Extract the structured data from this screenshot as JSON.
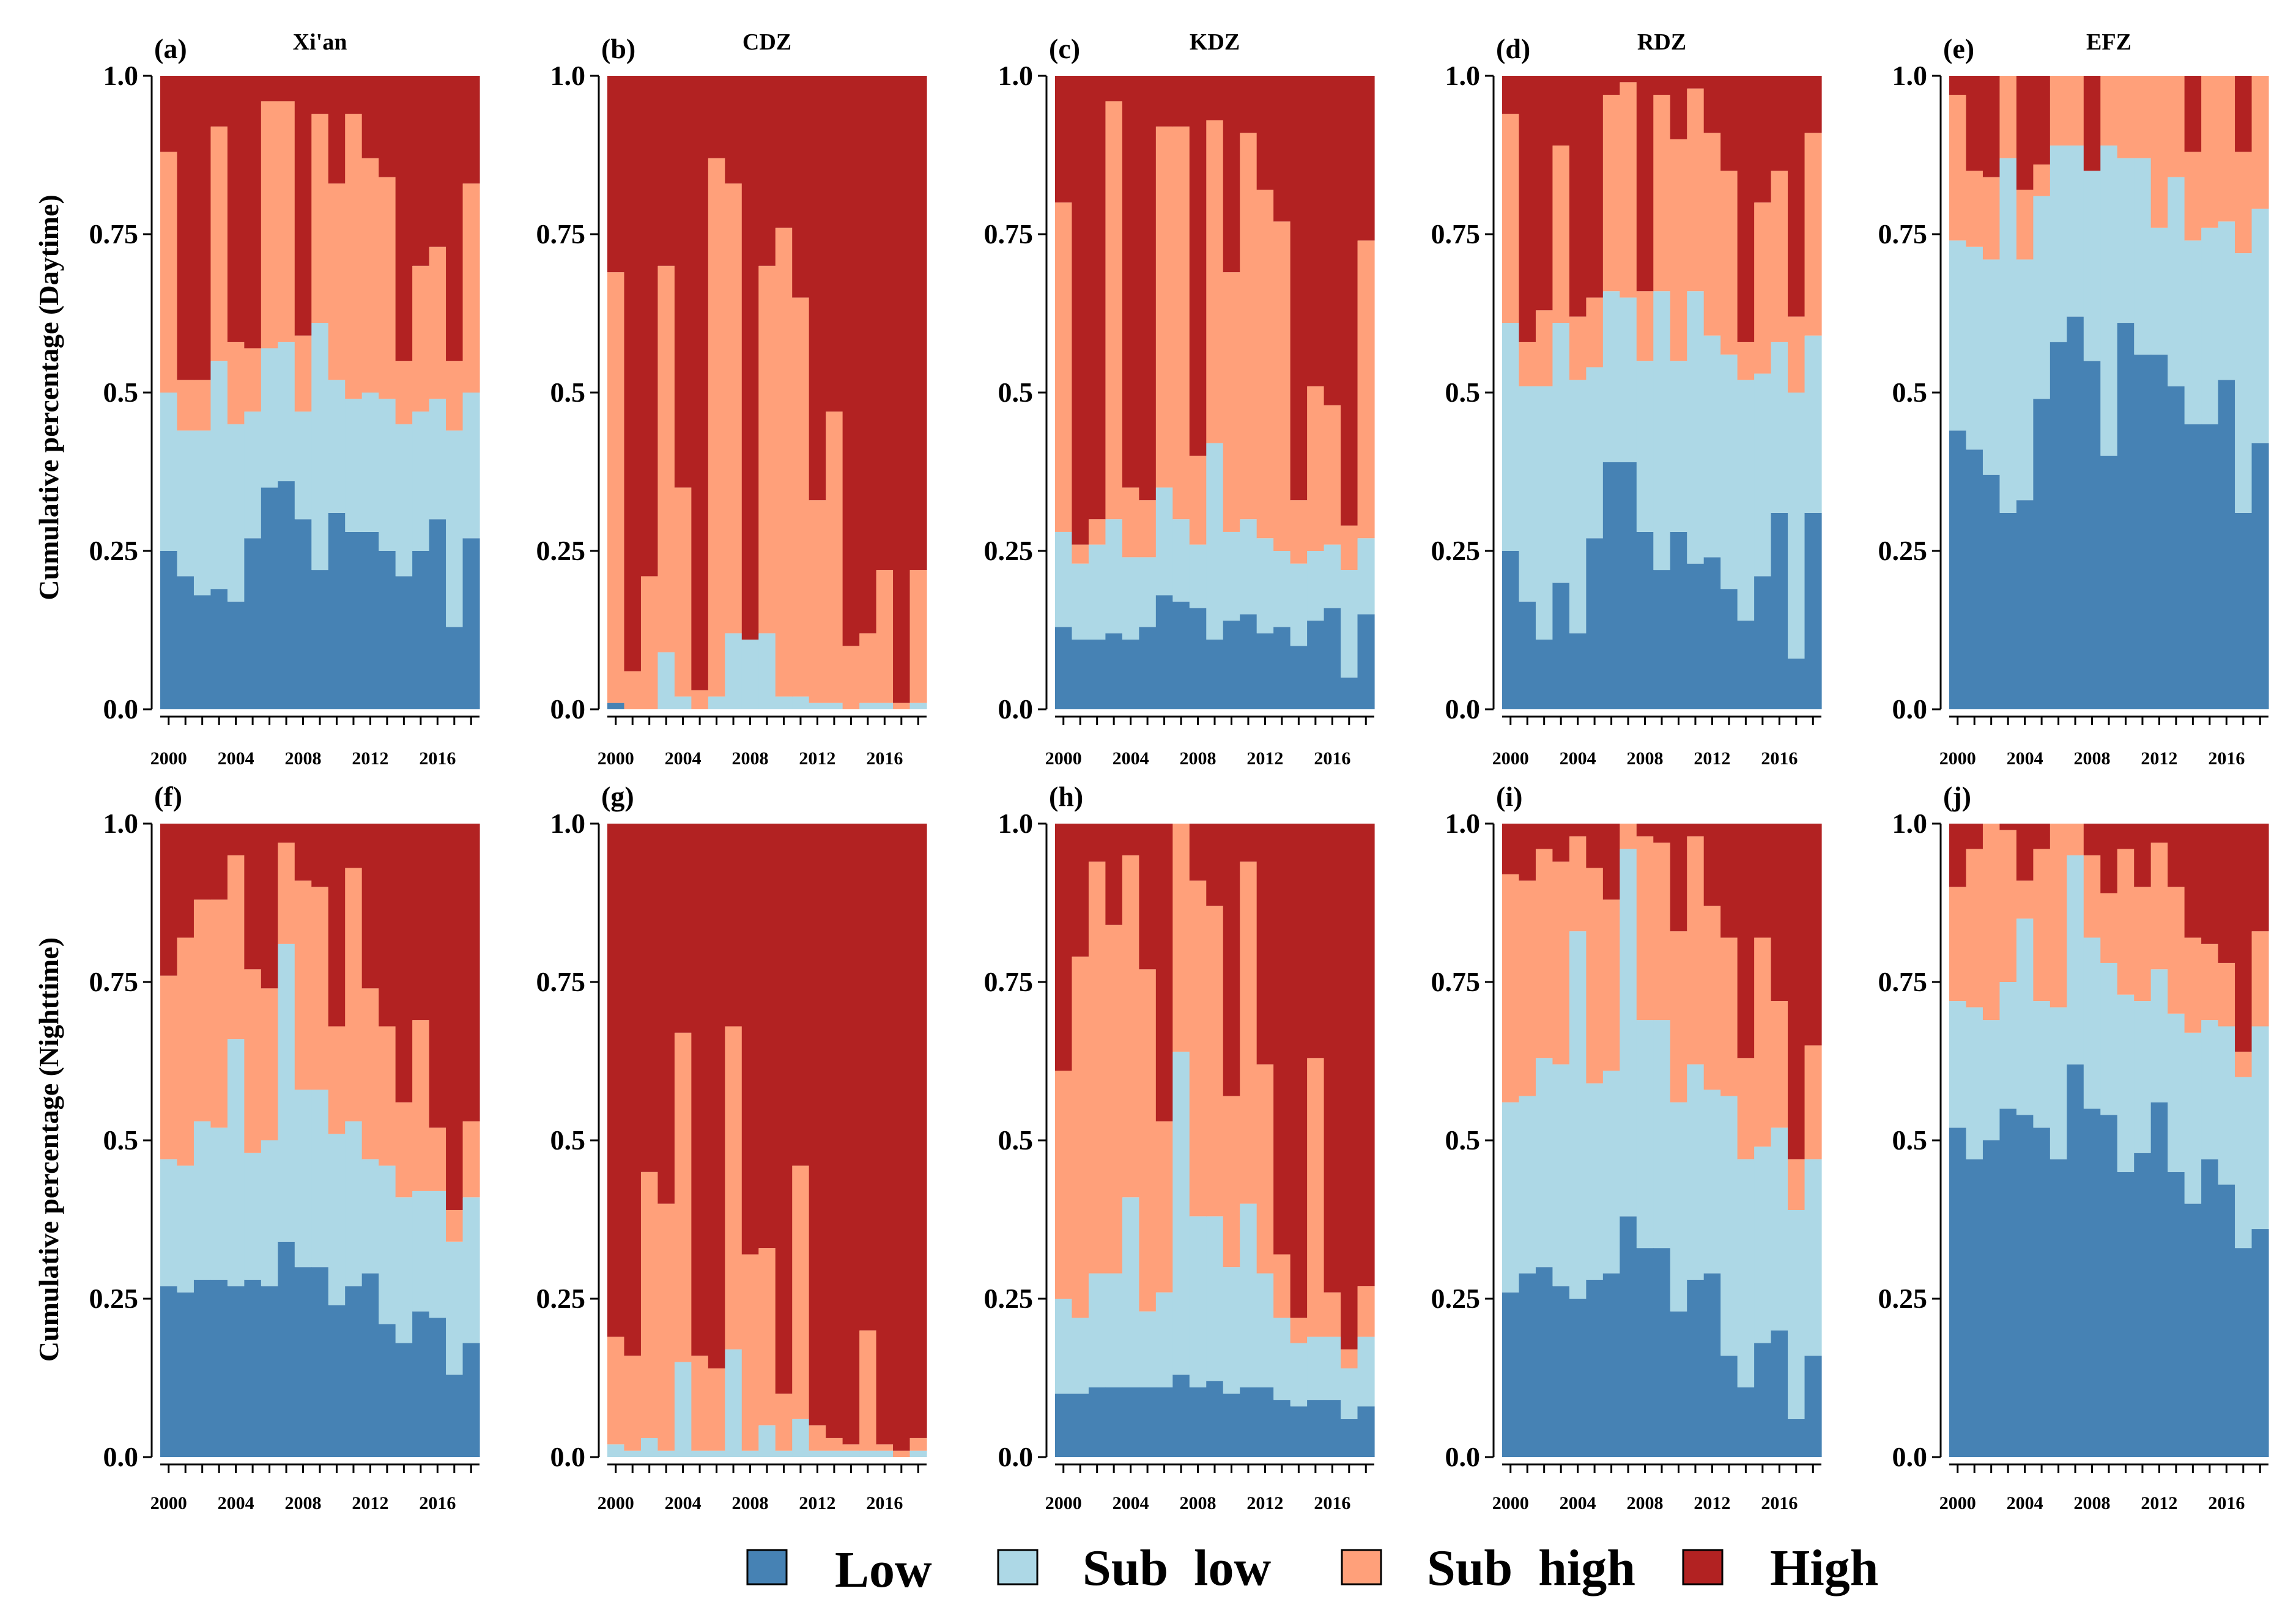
{
  "chart_data": {
    "type": "stacked-bar",
    "x": [
      2000,
      2001,
      2002,
      2003,
      2004,
      2005,
      2006,
      2007,
      2008,
      2009,
      2010,
      2011,
      2012,
      2013,
      2014,
      2015,
      2016,
      2017,
      2018
    ],
    "x_tick_labels": [
      "2000",
      "2004",
      "2008",
      "2012",
      "2016"
    ],
    "y_ticks": [
      "0.0",
      "0.25",
      "0.5",
      "0.75",
      "1.0"
    ],
    "ylim": [
      0,
      1
    ],
    "row_labels": [
      "Cumulative percentage   (Daytime)",
      "Cumulative percentage (Nighttime)"
    ],
    "categories": [
      "Low",
      "Sub  low",
      "Sub  high",
      "High"
    ],
    "legend": {
      "labels": [
        "Low",
        "Sub  low",
        "Sub  high",
        "High"
      ],
      "colors": [
        "#4682b4",
        "#add8e6",
        "#ffa07a",
        "#b22222"
      ],
      "position": "bottom-center"
    },
    "panels": [
      {
        "label": "(a)",
        "title": "Xi'an",
        "period": "Daytime",
        "low": [
          0.25,
          0.21,
          0.18,
          0.19,
          0.17,
          0.27,
          0.35,
          0.36,
          0.3,
          0.22,
          0.31,
          0.28,
          0.28,
          0.25,
          0.21,
          0.25,
          0.3,
          0.13,
          0.27
        ],
        "sublow": [
          0.5,
          0.44,
          0.44,
          0.55,
          0.45,
          0.47,
          0.57,
          0.58,
          0.47,
          0.61,
          0.52,
          0.49,
          0.5,
          0.49,
          0.45,
          0.47,
          0.49,
          0.44,
          0.5
        ],
        "subhigh": [
          0.88,
          0.52,
          0.52,
          0.92,
          0.58,
          0.57,
          0.96,
          0.96,
          0.59,
          0.94,
          0.83,
          0.94,
          0.87,
          0.84,
          0.55,
          0.7,
          0.73,
          0.55,
          0.83
        ]
      },
      {
        "label": "(b)",
        "title": "CDZ",
        "period": "Daytime",
        "low": [
          0.01,
          0.0,
          0.0,
          0.0,
          0.0,
          0.0,
          0.0,
          0.0,
          0.0,
          0.0,
          0.0,
          0.0,
          0.0,
          0.0,
          0.0,
          0.0,
          0.0,
          0.0,
          0.0
        ],
        "sublow": [
          0.01,
          0.0,
          0.0,
          0.09,
          0.02,
          0.0,
          0.02,
          0.12,
          0.11,
          0.12,
          0.02,
          0.02,
          0.01,
          0.01,
          0.0,
          0.01,
          0.01,
          0.0,
          0.01
        ],
        "subhigh": [
          0.69,
          0.06,
          0.21,
          0.7,
          0.35,
          0.03,
          0.87,
          0.83,
          0.11,
          0.7,
          0.76,
          0.65,
          0.33,
          0.47,
          0.1,
          0.12,
          0.22,
          0.01,
          0.22
        ]
      },
      {
        "label": "(c)",
        "title": "KDZ",
        "period": "Daytime",
        "low": [
          0.13,
          0.11,
          0.11,
          0.12,
          0.11,
          0.13,
          0.18,
          0.17,
          0.16,
          0.11,
          0.14,
          0.15,
          0.12,
          0.13,
          0.1,
          0.14,
          0.16,
          0.05,
          0.15
        ],
        "sublow": [
          0.28,
          0.23,
          0.26,
          0.3,
          0.24,
          0.24,
          0.35,
          0.3,
          0.26,
          0.42,
          0.28,
          0.3,
          0.27,
          0.25,
          0.23,
          0.25,
          0.26,
          0.22,
          0.27
        ],
        "subhigh": [
          0.8,
          0.26,
          0.3,
          0.96,
          0.35,
          0.33,
          0.92,
          0.92,
          0.4,
          0.93,
          0.69,
          0.91,
          0.82,
          0.77,
          0.33,
          0.51,
          0.48,
          0.29,
          0.74
        ]
      },
      {
        "label": "(d)",
        "title": "RDZ",
        "period": "Daytime",
        "low": [
          0.25,
          0.17,
          0.11,
          0.2,
          0.12,
          0.27,
          0.39,
          0.39,
          0.28,
          0.22,
          0.28,
          0.23,
          0.24,
          0.19,
          0.14,
          0.21,
          0.31,
          0.08,
          0.31
        ],
        "sublow": [
          0.61,
          0.51,
          0.51,
          0.61,
          0.52,
          0.54,
          0.66,
          0.65,
          0.55,
          0.66,
          0.55,
          0.66,
          0.59,
          0.56,
          0.52,
          0.53,
          0.58,
          0.5,
          0.59
        ],
        "subhigh": [
          0.94,
          0.58,
          0.63,
          0.89,
          0.62,
          0.65,
          0.97,
          0.99,
          0.66,
          0.97,
          0.9,
          0.98,
          0.91,
          0.85,
          0.58,
          0.8,
          0.85,
          0.62,
          0.91
        ]
      },
      {
        "label": "(e)",
        "title": "EFZ",
        "period": "Daytime",
        "low": [
          0.44,
          0.41,
          0.37,
          0.31,
          0.33,
          0.49,
          0.58,
          0.62,
          0.55,
          0.4,
          0.61,
          0.56,
          0.56,
          0.51,
          0.45,
          0.45,
          0.52,
          0.31,
          0.42
        ],
        "sublow": [
          0.74,
          0.73,
          0.71,
          0.87,
          0.71,
          0.81,
          0.89,
          0.89,
          0.85,
          0.89,
          0.87,
          0.87,
          0.76,
          0.84,
          0.74,
          0.76,
          0.77,
          0.72,
          0.79
        ],
        "subhigh": [
          0.97,
          0.85,
          0.84,
          1.0,
          0.82,
          0.86,
          1.0,
          1.0,
          0.85,
          1.0,
          1.0,
          1.0,
          1.0,
          1.0,
          0.88,
          1.0,
          1.0,
          0.88,
          1.0
        ]
      },
      {
        "label": "(f)",
        "title": "",
        "period": "Nighttime",
        "low": [
          0.27,
          0.26,
          0.28,
          0.28,
          0.27,
          0.28,
          0.27,
          0.34,
          0.3,
          0.3,
          0.24,
          0.27,
          0.29,
          0.21,
          0.18,
          0.23,
          0.22,
          0.13,
          0.18
        ],
        "sublow": [
          0.47,
          0.46,
          0.53,
          0.52,
          0.66,
          0.48,
          0.5,
          0.81,
          0.58,
          0.58,
          0.51,
          0.53,
          0.47,
          0.46,
          0.41,
          0.42,
          0.42,
          0.34,
          0.41
        ],
        "subhigh": [
          0.76,
          0.82,
          0.88,
          0.88,
          0.95,
          0.77,
          0.74,
          0.97,
          0.91,
          0.9,
          0.68,
          0.93,
          0.74,
          0.68,
          0.56,
          0.69,
          0.52,
          0.39,
          0.53
        ]
      },
      {
        "label": "(g)",
        "title": "",
        "period": "Nighttime",
        "low": [
          0.0,
          0.0,
          0.0,
          0.0,
          0.0,
          0.0,
          0.0,
          0.0,
          0.0,
          0.0,
          0.0,
          0.0,
          0.0,
          0.0,
          0.0,
          0.0,
          0.0,
          0.0,
          0.0
        ],
        "sublow": [
          0.02,
          0.01,
          0.03,
          0.01,
          0.15,
          0.01,
          0.01,
          0.17,
          0.01,
          0.05,
          0.01,
          0.06,
          0.01,
          0.01,
          0.01,
          0.01,
          0.01,
          0.0,
          0.01
        ],
        "subhigh": [
          0.19,
          0.16,
          0.45,
          0.4,
          0.67,
          0.16,
          0.14,
          0.68,
          0.32,
          0.33,
          0.1,
          0.46,
          0.05,
          0.03,
          0.02,
          0.2,
          0.02,
          0.01,
          0.03
        ]
      },
      {
        "label": "(h)",
        "title": "",
        "period": "Nighttime",
        "low": [
          0.1,
          0.1,
          0.11,
          0.11,
          0.11,
          0.11,
          0.11,
          0.13,
          0.11,
          0.12,
          0.1,
          0.11,
          0.11,
          0.09,
          0.08,
          0.09,
          0.09,
          0.06,
          0.08
        ],
        "sublow": [
          0.25,
          0.22,
          0.29,
          0.29,
          0.41,
          0.23,
          0.26,
          0.64,
          0.38,
          0.38,
          0.3,
          0.4,
          0.29,
          0.22,
          0.18,
          0.19,
          0.19,
          0.14,
          0.19
        ],
        "subhigh": [
          0.61,
          0.79,
          0.94,
          0.84,
          0.95,
          0.77,
          0.53,
          1.0,
          0.91,
          0.87,
          0.57,
          0.94,
          0.62,
          0.32,
          0.22,
          0.63,
          0.26,
          0.17,
          0.27
        ]
      },
      {
        "label": "(i)",
        "title": "",
        "period": "Nighttime",
        "low": [
          0.26,
          0.29,
          0.3,
          0.27,
          0.25,
          0.28,
          0.29,
          0.38,
          0.33,
          0.33,
          0.23,
          0.28,
          0.29,
          0.16,
          0.11,
          0.18,
          0.2,
          0.06,
          0.16
        ],
        "sublow": [
          0.56,
          0.57,
          0.63,
          0.62,
          0.83,
          0.59,
          0.61,
          0.96,
          0.69,
          0.69,
          0.56,
          0.62,
          0.58,
          0.57,
          0.47,
          0.49,
          0.52,
          0.39,
          0.47
        ],
        "subhigh": [
          0.92,
          0.91,
          0.96,
          0.94,
          0.98,
          0.93,
          0.88,
          1.0,
          0.98,
          0.97,
          0.83,
          0.98,
          0.87,
          0.82,
          0.63,
          0.82,
          0.72,
          0.47,
          0.65
        ]
      },
      {
        "label": "(j)",
        "title": "",
        "period": "Nighttime",
        "low": [
          0.52,
          0.47,
          0.5,
          0.55,
          0.54,
          0.52,
          0.47,
          0.62,
          0.55,
          0.54,
          0.45,
          0.48,
          0.56,
          0.45,
          0.4,
          0.47,
          0.43,
          0.33,
          0.36
        ],
        "sublow": [
          0.72,
          0.71,
          0.69,
          0.75,
          0.85,
          0.72,
          0.71,
          0.95,
          0.82,
          0.78,
          0.73,
          0.72,
          0.77,
          0.7,
          0.67,
          0.69,
          0.68,
          0.6,
          0.68
        ],
        "subhigh": [
          0.9,
          0.96,
          1.0,
          0.99,
          0.91,
          0.96,
          1.0,
          1.0,
          0.95,
          0.89,
          0.96,
          0.9,
          0.97,
          0.9,
          0.82,
          0.81,
          0.78,
          0.64,
          0.83
        ]
      }
    ]
  }
}
